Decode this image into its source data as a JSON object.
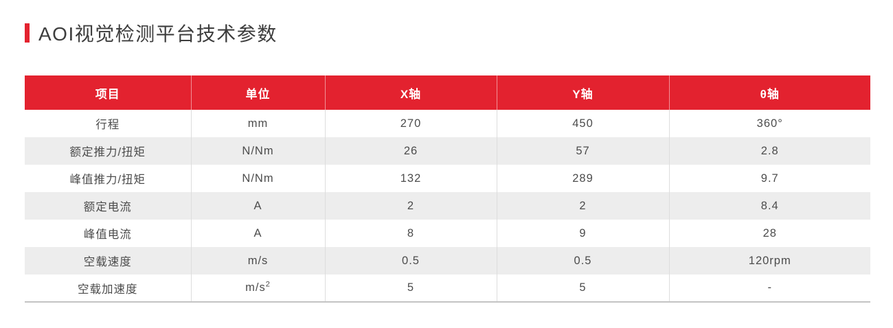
{
  "theme": {
    "accent_red": "#e3222f",
    "stripe_gray": "#ededed",
    "divider_gray": "#dddddd",
    "bottom_border_gray": "#c3c3c3",
    "header_text": "#ffffff",
    "body_text": "#4c4c4c",
    "title_text": "#3d3d3d"
  },
  "header": {
    "title": "AOI视觉检测平台技术参数"
  },
  "table": {
    "columns": [
      "项目",
      "单位",
      "X轴",
      "Y轴",
      "θ轴"
    ],
    "rows": [
      [
        "行程",
        "mm",
        "270",
        "450",
        "360°"
      ],
      [
        "额定推力/扭矩",
        "N/Nm",
        "26",
        "57",
        "2.8"
      ],
      [
        "峰值推力/扭矩",
        "N/Nm",
        "132",
        "289",
        "9.7"
      ],
      [
        "额定电流",
        "A",
        "2",
        "2",
        "8.4"
      ],
      [
        "峰值电流",
        "A",
        "8",
        "9",
        "28"
      ],
      [
        "空载速度",
        "m/s",
        "0.5",
        "0.5",
        "120rpm"
      ],
      [
        "空载加速度",
        "m/s²",
        "5",
        "5",
        "-"
      ]
    ]
  }
}
